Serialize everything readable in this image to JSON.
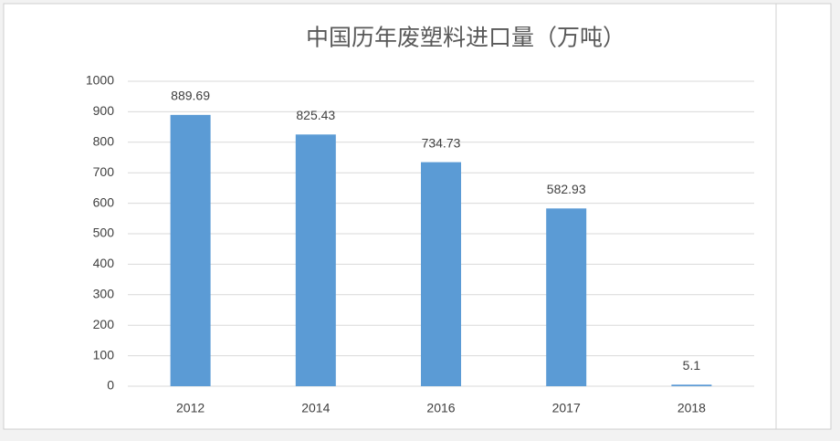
{
  "chart_data": {
    "type": "bar",
    "title": "中国历年废塑料进口量（万吨）",
    "categories": [
      "2012",
      "2014",
      "2016",
      "2017",
      "2018"
    ],
    "values": [
      889.69,
      825.43,
      734.73,
      582.93,
      5.1
    ],
    "color": "#5b9bd5",
    "ylim": [
      0,
      1000
    ],
    "yticks": [
      0,
      100,
      200,
      300,
      400,
      500,
      600,
      700,
      800,
      900,
      1000
    ],
    "grid": true
  }
}
